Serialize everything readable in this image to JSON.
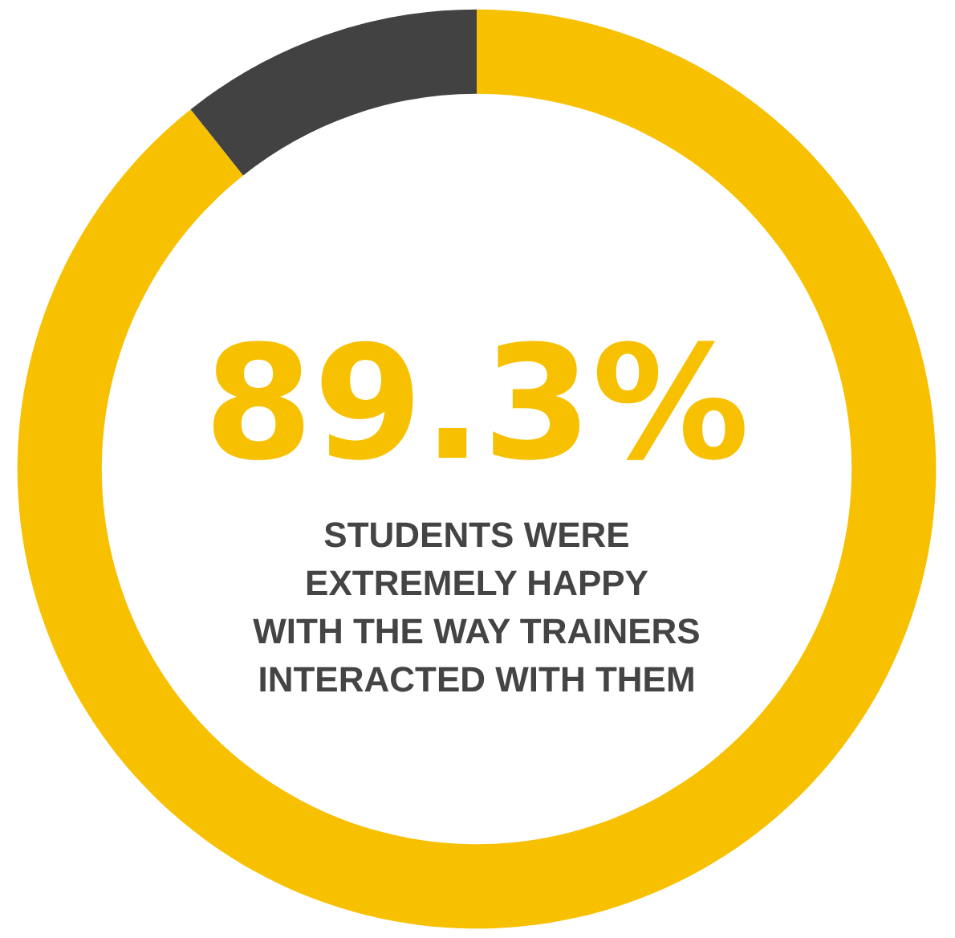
{
  "chart_data": {
    "type": "donut",
    "categories": [
      null,
      null
    ],
    "values": [
      89.3,
      10.7
    ],
    "colors": [
      "#f7c000",
      "#424242"
    ],
    "value_labels": [
      "89.3%",
      null
    ],
    "annotations": [
      "STUDENTS WERE\nEXTREMELY HAPPY\nWITH THE WAY TRAINERS\nINTERACTED WITH THEM"
    ]
  }
}
